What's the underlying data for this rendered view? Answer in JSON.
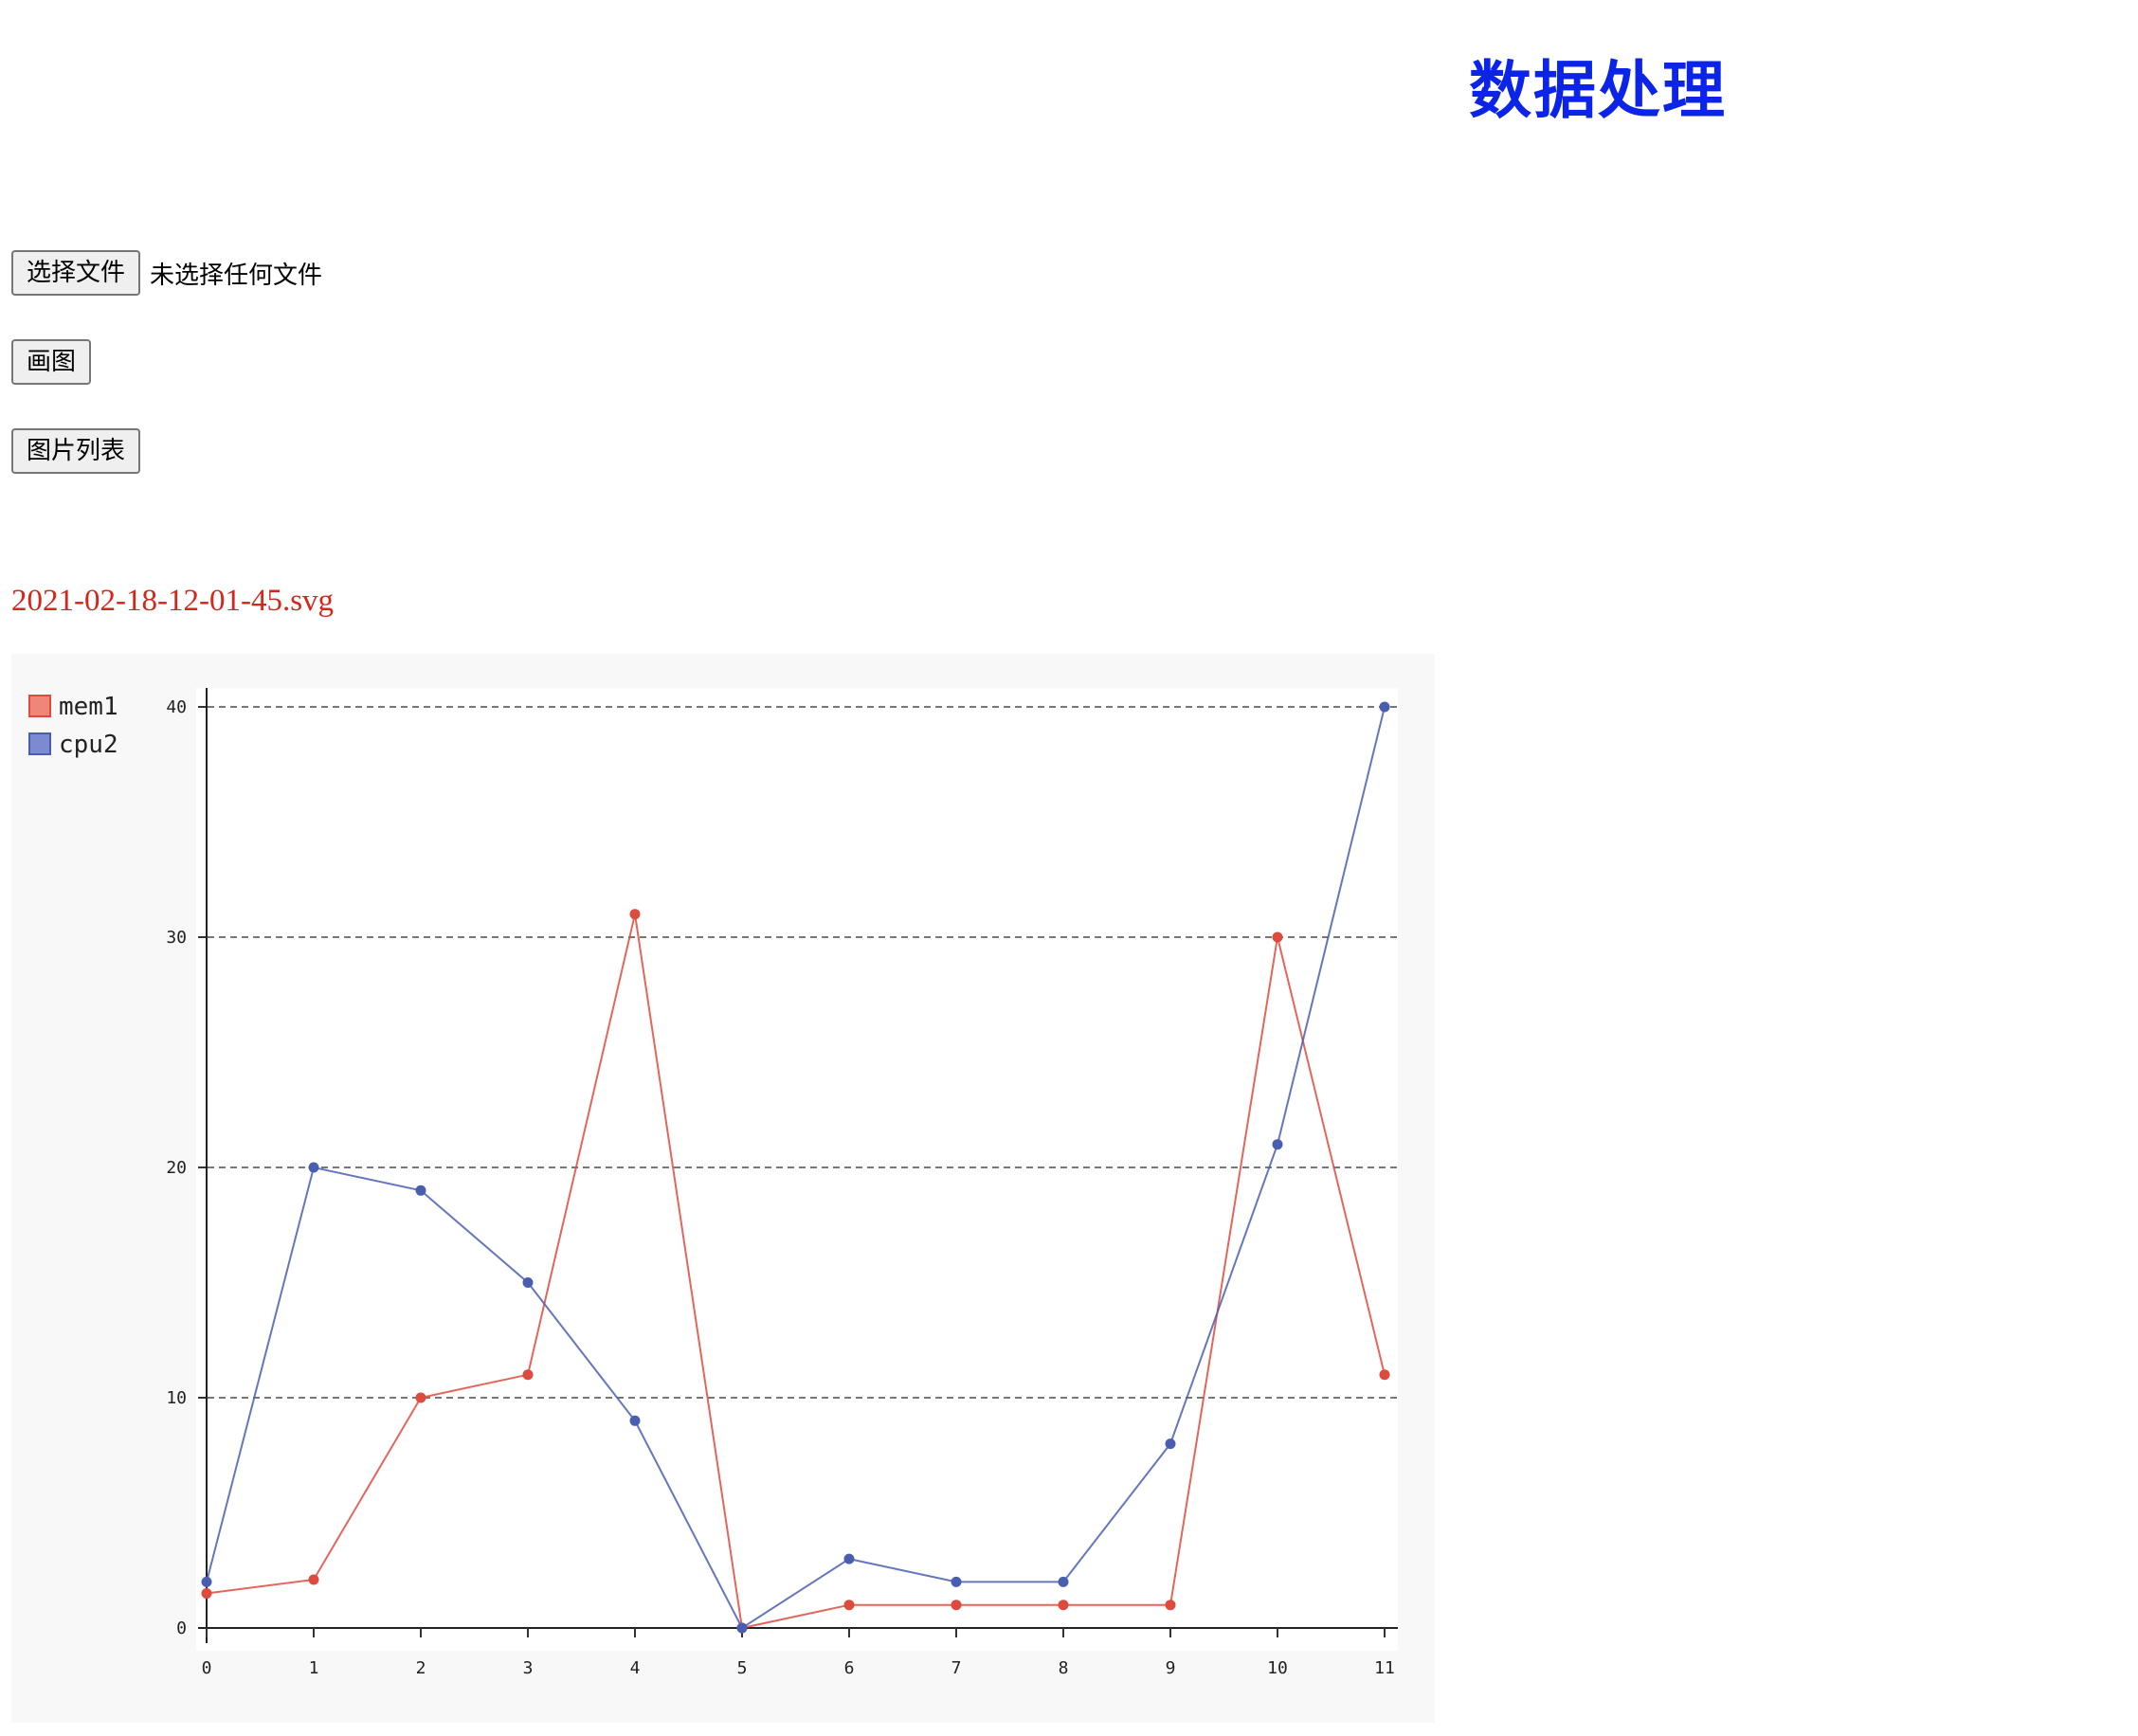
{
  "header": {
    "title": "数据处理"
  },
  "controls": {
    "choose_file_label": "选择文件",
    "file_status": "未选择任何文件",
    "draw_label": "画图",
    "image_list_label": "图片列表"
  },
  "file_name": "2021-02-18-12-01-45.svg",
  "colors": {
    "title": "#0b24e8",
    "file_name": "#d2271b",
    "mem1": "#dd4b3e",
    "cpu2": "#4a5eb0"
  },
  "chart_data": {
    "type": "line",
    "title": "",
    "xlabel": "",
    "ylabel": "",
    "x": [
      0,
      1,
      2,
      3,
      4,
      5,
      6,
      7,
      8,
      9,
      10,
      11
    ],
    "ylim": [
      0,
      40
    ],
    "yticks": [
      0,
      10,
      20,
      30,
      40
    ],
    "grid": "horizontal-dashed",
    "legend": "top-left",
    "series": [
      {
        "name": "mem1",
        "color": "#dd4b3e",
        "legend_color": "#f0857a",
        "values": [
          1.5,
          2.1,
          10,
          11,
          31,
          0,
          1,
          1,
          1,
          1,
          30,
          11
        ]
      },
      {
        "name": "cpu2",
        "color": "#4a5eb0",
        "legend_color": "#7c8ad2",
        "values": [
          2,
          20,
          19,
          15,
          9,
          0,
          3,
          2,
          2,
          8,
          21,
          40
        ]
      }
    ]
  }
}
